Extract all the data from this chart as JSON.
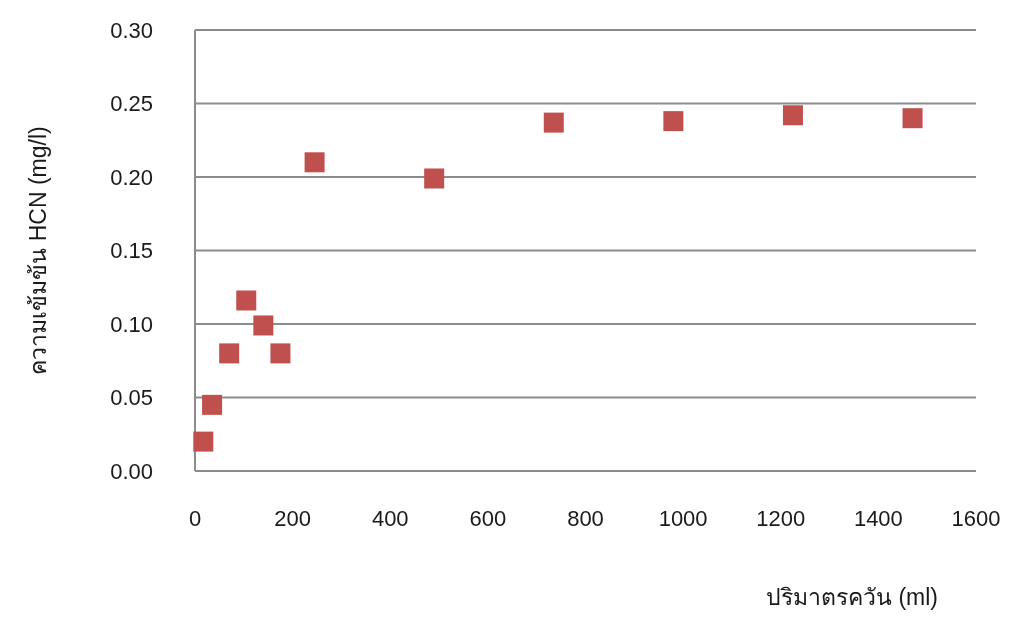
{
  "chart_data": {
    "type": "scatter",
    "xlabel": "ปริมาตรควัน (ml)",
    "ylabel": "ความเข้มข้น HCN (mg/l)",
    "x": [
      17,
      35,
      70,
      105,
      140,
      175,
      245,
      490,
      735,
      980,
      1225,
      1470
    ],
    "values": [
      0.02,
      0.045,
      0.08,
      0.116,
      0.099,
      0.08,
      0.21,
      0.199,
      0.237,
      0.238,
      0.242,
      0.24
    ],
    "color": "#c0504d",
    "marker": "square",
    "grid": "y",
    "xlim": [
      0,
      1600
    ],
    "xticks": [
      0,
      200,
      400,
      600,
      800,
      1000,
      1200,
      1400,
      1600
    ],
    "ylim": [
      0,
      0.3
    ],
    "yticks": [
      {
        "value": 0,
        "label": "0.00"
      },
      {
        "value": 0.05,
        "label": "0.05"
      },
      {
        "value": 0.1,
        "label": "0.10"
      },
      {
        "value": 0.15,
        "label": "0.15"
      },
      {
        "value": 0.2,
        "label": "0.20"
      },
      {
        "value": 0.25,
        "label": "0.25"
      },
      {
        "value": 0.3,
        "label": "0.30"
      }
    ]
  }
}
